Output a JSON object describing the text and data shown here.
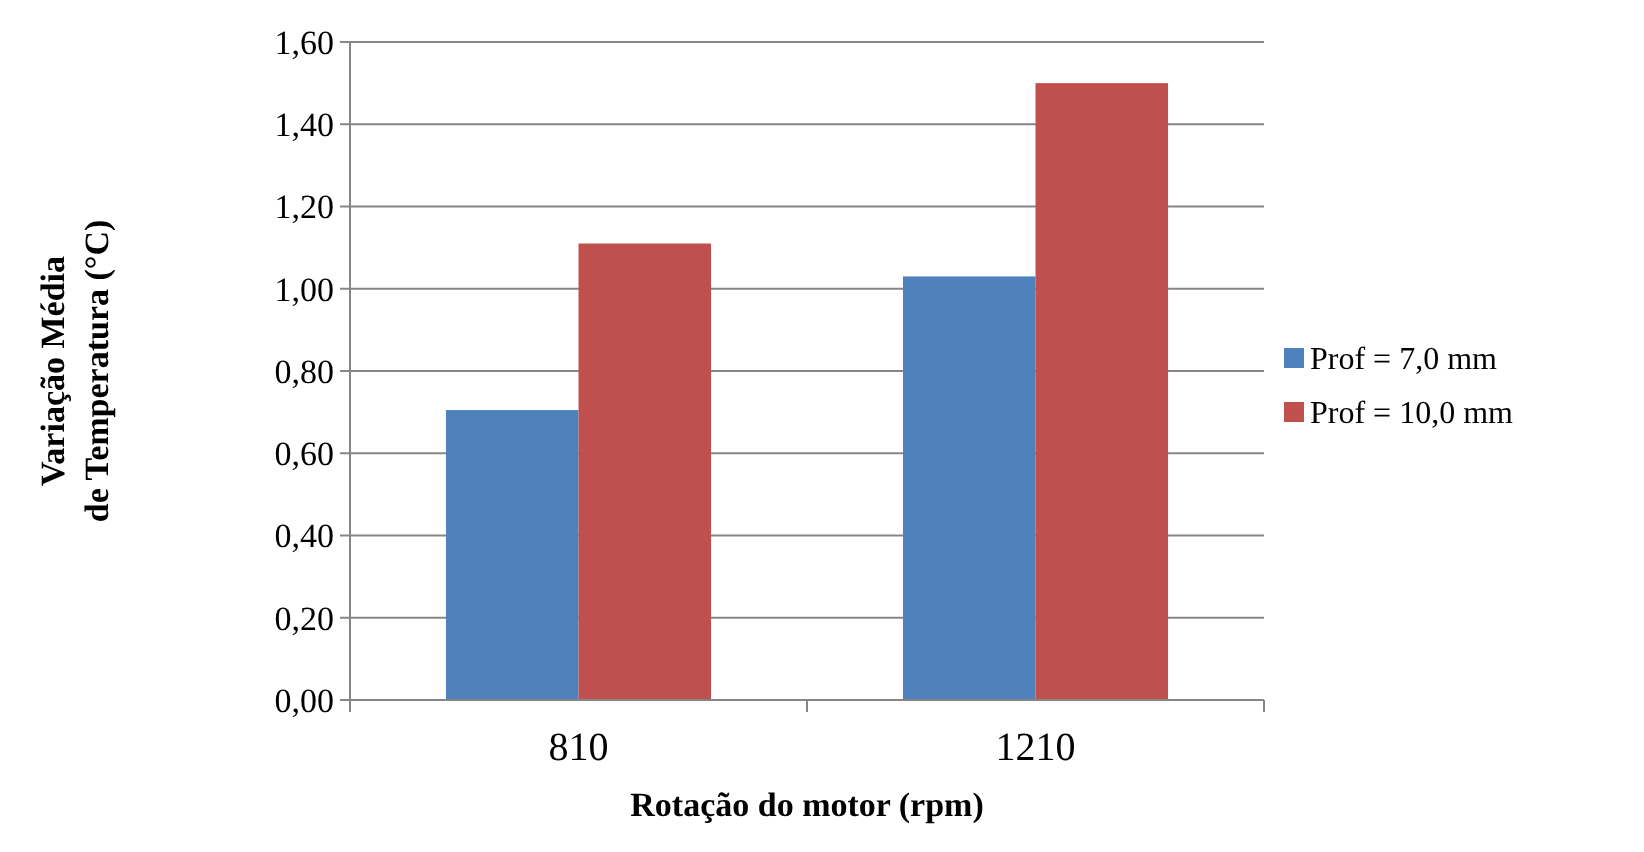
{
  "chart_data": {
    "type": "bar",
    "xlabel": "Rotação do motor (rpm)",
    "ylabel": "Variação Média de Temperatura (°C)",
    "categories": [
      "810",
      "1210"
    ],
    "series": [
      {
        "name": "Prof = 7,0 mm",
        "color": "#4f81bd",
        "values": [
          0.705,
          1.03
        ]
      },
      {
        "name": "Prof = 10,0 mm",
        "color": "#c0504d",
        "values": [
          1.11,
          1.5
        ]
      }
    ],
    "ylim": [
      0,
      1.6
    ],
    "yticks": [
      {
        "value": 0,
        "label": "0,00"
      },
      {
        "value": 0.2,
        "label": "0,20"
      },
      {
        "value": 0.4,
        "label": "0,40"
      },
      {
        "value": 0.6,
        "label": "0,60"
      },
      {
        "value": 0.8,
        "label": "0,80"
      },
      {
        "value": 1,
        "label": "1,00"
      },
      {
        "value": 1.2,
        "label": "1,20"
      },
      {
        "value": 1.4,
        "label": "1,40"
      },
      {
        "value": 1.6,
        "label": "1,60"
      }
    ],
    "grid": "y",
    "legend": "right"
  }
}
